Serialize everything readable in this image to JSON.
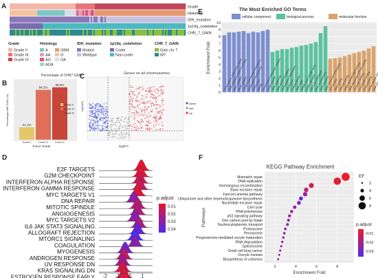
{
  "panels": {
    "A": {
      "label": "A",
      "track_labels": [
        "Grade",
        "Histology",
        "IDH_mutation",
        "1p19q_codeletion",
        "CHR_7_GAIN"
      ],
      "legend": [
        {
          "title": "Grade",
          "items": [
            {
              "label": "Grade II",
              "color": "#f4b6a8"
            },
            {
              "label": "Grade III",
              "color": "#e8727a"
            },
            {
              "label": "Grade IV",
              "color": "#c3475a"
            }
          ]
        },
        {
          "title": "Histology",
          "items": [
            {
              "label": "A",
              "color": "#7fc7c5"
            },
            {
              "label": "AA",
              "color": "#e49bb3"
            },
            {
              "label": "AO",
              "color": "#d9567a"
            },
            {
              "label": "AOA",
              "color": "#9dd3d8"
            },
            {
              "label": "GBM",
              "color": "#e39a74"
            },
            {
              "label": "O",
              "color": "#f4c3a1"
            },
            {
              "label": "OA",
              "color": "#d5dde8"
            }
          ]
        },
        {
          "title": "IDH_mutation",
          "items": [
            {
              "label": "Mutant",
              "color": "#8a78b8"
            },
            {
              "label": "Wildtype",
              "color": "#c9c0e0"
            }
          ]
        },
        {
          "title": "1p19q_codeletion",
          "items": [
            {
              "label": "Codel",
              "color": "#7b6cb0"
            },
            {
              "label": "Non-codel",
              "color": "#4cb9c0"
            }
          ]
        },
        {
          "title": "CHR_7_GAIN",
          "items": [
            {
              "label": "Gain chr 7",
              "color": "#8bbf3f"
            },
            {
              "label": "WT",
              "color": "#2d8b8f"
            }
          ]
        }
      ]
    },
    "B": {
      "label": "B",
      "title": "Percentage of CHR7 GAIN",
      "xlabel": "Tumor Grade",
      "ylabel": "Percentage with GAIN (%)",
      "legend": [
        "Grade II",
        "Grade III",
        "Grade IV"
      ],
      "chart_data": {
        "type": "bar",
        "categories": [
          "Grade II",
          "Grade III",
          "Grade IV"
        ],
        "values": [
          21.1,
          84.2,
          88.5
        ],
        "value_labels": [
          "21.1%",
          "84.2%",
          "88.5%"
        ],
        "ylim": [
          0,
          100
        ]
      }
    },
    "C": {
      "label": "C",
      "title": "Genes on all chromosomes",
      "xlabel": "log2FC",
      "ylabel": "-log10(P)",
      "legend": [
        "Down",
        "Not",
        "Up"
      ]
    },
    "D": {
      "label": "D",
      "legend_title": "p.adjust",
      "legend_ticks": [
        "0.01",
        "0.02",
        "0.03",
        "0.04"
      ],
      "xticks": [
        "-2",
        "-1",
        "0",
        "1"
      ],
      "chart_data": {
        "type": "area",
        "terms": [
          "E2F TARGETS",
          "G2M CHECKPOINT",
          "INTERFERON ALPHA RESPONSE",
          "INTERFERON GAMMA RESPONSE",
          "MYC TARGETS V1",
          "DNA REPAIR",
          "MITOTIC SPINDLE",
          "ANGIOGENESIS",
          "MYC TARGETS V2",
          "IL6 JAK STAT3 SIGNALING",
          "ALLOGRAFT REJECTION",
          "MTORC1 SIGNALING",
          "COAGULATION",
          "MYOGENESIS",
          "ANDROGEN RESPONSE",
          "UV RESPONSE DN",
          "KRAS SIGNALING DN",
          "ESTROGEN RESPONSE EARLY"
        ],
        "peaks": [
          0.9,
          0.85,
          0.8,
          0.8,
          0.6,
          0.3,
          0.6,
          0.6,
          0.4,
          0.7,
          0.6,
          0.4,
          0.4,
          -0.4,
          -0.5,
          -0.6,
          -0.6,
          -0.5
        ],
        "padjust": [
          0.005,
          0.006,
          0.012,
          0.014,
          0.006,
          0.03,
          0.018,
          0.02,
          0.03,
          0.022,
          0.04,
          0.045,
          0.03,
          0.035,
          0.015,
          0.025,
          0.01,
          0.008
        ],
        "xlim": [
          -2.5,
          1.8
        ]
      }
    },
    "E": {
      "label": "E",
      "title": "The Most Enriched GO Terms",
      "ylabel": "Enrichment Fold",
      "legend": [
        {
          "label": "cellular component",
          "color": "#7d8fd1"
        },
        {
          "label": "biological process",
          "color": "#5cc2a0"
        },
        {
          "label": "molecular function",
          "color": "#d9a46b"
        }
      ],
      "yticks": [
        "0",
        "1",
        "2",
        "3",
        "4",
        "5",
        "6",
        "7",
        "8",
        "9",
        "10"
      ],
      "chart_data": {
        "type": "bar",
        "ylim": [
          0,
          10
        ],
        "categories": [
          "chromosome, centromeric region",
          "DNA replication factor A complex",
          "CMG complex",
          "MCM complex",
          "CENP-A containing nucleosome",
          "condensed chromosome",
          "kinetochore",
          "spindle",
          "chromosome passenger complex",
          "mitotic spindle",
          "DNA replication",
          "DNA strand elongation",
          "chromosome segregation",
          "cell division",
          "nuclear division",
          "DNA repair",
          "double-strand break repair",
          "mitotic cell cycle",
          "cell cycle checkpoint",
          "DNA recombination",
          "G1/S transition",
          "sister chromatid segregation",
          "ATP binding",
          "DNA binding",
          "helicase activity",
          "single-stranded DNA binding",
          "DNA-dependent ATPase activity",
          "chromatin binding",
          "microtubule binding",
          "kinase binding",
          "protein kinase activity",
          "DNA polymerase activity"
        ],
        "groups": [
          "cc",
          "cc",
          "cc",
          "cc",
          "cc",
          "cc",
          "cc",
          "cc",
          "cc",
          "cc",
          "bp",
          "bp",
          "bp",
          "bp",
          "bp",
          "bp",
          "bp",
          "bp",
          "bp",
          "bp",
          "bp",
          "bp",
          "mf",
          "mf",
          "mf",
          "mf",
          "mf",
          "mf",
          "mf",
          "mf",
          "mf",
          "mf"
        ],
        "values": [
          8.2,
          8.6,
          8.6,
          8.7,
          8.8,
          8.5,
          8.7,
          8.6,
          8.8,
          9.0,
          5.8,
          6.0,
          6.2,
          6.2,
          6.4,
          6.5,
          6.7,
          6.8,
          7.0,
          7.2,
          8.5,
          9.5,
          4.8,
          4.9,
          5.0,
          5.2,
          5.4,
          5.6,
          5.8,
          6.0,
          6.3,
          6.6
        ]
      }
    },
    "F": {
      "label": "F",
      "title": "KEGG Pathway Enrichment",
      "xlabel": "Enrichment Fold",
      "ylabel": "Pathways",
      "ef_title": "EF",
      "ef_ticks": [
        "2",
        "4",
        "6",
        "8"
      ],
      "padj_title": "p.adjust",
      "padj_ticks": [
        "-0.01",
        "-0.02",
        "-0.03"
      ],
      "xticks": [
        "2",
        "4",
        "6",
        "8"
      ],
      "chart_data": {
        "type": "scatter",
        "pathways": [
          "Mismatch repair",
          "DNA replication",
          "Homologous recombination",
          "Base excision repair",
          "Fanconi anemia pathway",
          "Ubiquinone and other terpenoid-quinone biosynthesis",
          "Nucleotide excision repair",
          "Cell cycle",
          "RNA polymerase",
          "p53 signaling pathway",
          "One carbon pool by folate",
          "Nucleocytoplasmic transport",
          "Proteasome",
          "Peroxisome",
          "Progesterone-mediated oocyte maturation",
          "RNA degradation",
          "Spliceosome",
          "Small cell lung cancer",
          "Oocyte meiosis",
          "Biosynthesis of cofactors"
        ],
        "x": [
          8.8,
          8.0,
          5.5,
          5.0,
          4.9,
          4.5,
          4.3,
          3.9,
          3.6,
          3.4,
          3.3,
          3.2,
          3.0,
          2.9,
          2.8,
          2.7,
          2.6,
          2.5,
          2.4,
          2.3
        ],
        "padjust": [
          -0.001,
          -0.003,
          -0.008,
          -0.012,
          -0.02,
          -0.035,
          -0.028,
          -0.02,
          -0.018,
          -0.02,
          -0.022,
          -0.025,
          -0.02,
          -0.025,
          -0.02,
          -0.02,
          -0.025,
          -0.02,
          -0.025,
          -0.02
        ],
        "xlim": [
          1,
          9.6
        ]
      }
    }
  }
}
